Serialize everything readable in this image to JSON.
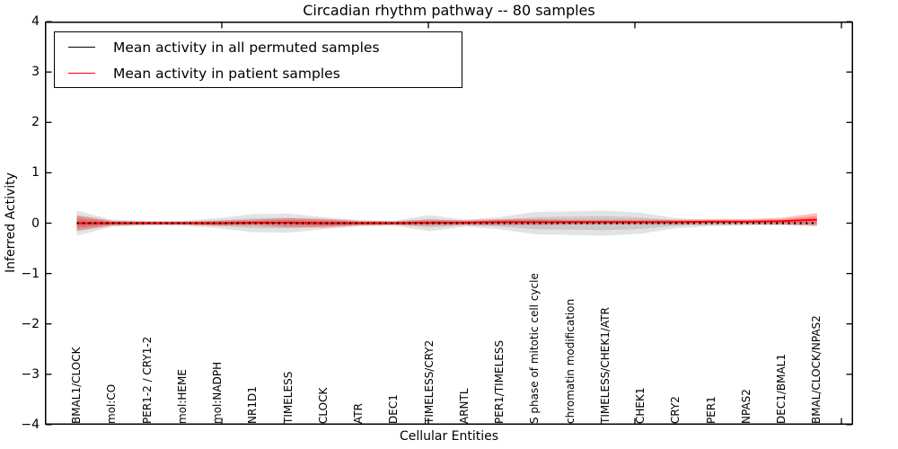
{
  "chart_data": {
    "type": "line",
    "title": "Circadian rhythm pathway -- 80 samples",
    "xlabel": "Cellular Entities",
    "ylabel": "Inferred Activity",
    "ylim": [
      -4,
      4
    ],
    "ytick_values": [
      -4,
      -3,
      -2,
      -1,
      0,
      1,
      2,
      3,
      4
    ],
    "ytick_labels": [
      "−4",
      "−3",
      "−2",
      "−1",
      "0",
      "1",
      "2",
      "3",
      "4"
    ],
    "grid": false,
    "legend_position": "upper left",
    "categories": [
      "BMAL1/CLOCK",
      "mol:CO",
      "PER1-2 / CRY1-2",
      "mol:HEME",
      "mol:NADPH",
      "NR1D1",
      "TIMELESS",
      "CLOCK",
      "ATR",
      "DEC1",
      "TIMELESS/CRY2",
      "ARNTL",
      "PER1/TIMELESS",
      "S phase of mitotic cell cycle",
      "chromatin modification",
      "TIMELESS/CHEK1/ATR",
      "CHEK1",
      "CRY2",
      "PER1",
      "NPAS2",
      "DEC1/BMAL1",
      "BMAL/CLOCK/NPAS2"
    ],
    "series": [
      {
        "name": "Mean activity in all permuted samples",
        "color": "#000000",
        "linestyle": "dotted",
        "values": [
          0,
          0,
          0,
          0,
          0,
          0,
          0,
          0,
          0,
          0,
          0,
          0,
          0,
          0,
          0,
          0,
          0,
          0,
          0,
          0,
          0,
          0
        ],
        "band_halfwidth": [
          0.25,
          0.07,
          0.045,
          0.05,
          0.1,
          0.18,
          0.19,
          0.12,
          0.06,
          0.05,
          0.16,
          0.07,
          0.12,
          0.22,
          0.235,
          0.25,
          0.21,
          0.1,
          0.06,
          0.05,
          0.045,
          0.045
        ],
        "band_color": "#000000",
        "band_opacity": 0.11
      },
      {
        "name": "Mean activity in patient samples",
        "color": "#ff0000",
        "linestyle": "solid",
        "values": [
          0,
          0,
          0,
          0,
          0,
          0.01,
          0.01,
          0,
          0,
          0,
          0.01,
          0.01,
          0.02,
          0.02,
          0.02,
          0.02,
          0.02,
          0.02,
          0.03,
          0.03,
          0.04,
          0.07
        ],
        "band_halfwidth": [
          0.16,
          0.05,
          0.035,
          0.035,
          0.05,
          0.06,
          0.09,
          0.09,
          0.05,
          0.04,
          0.06,
          0.05,
          0.06,
          0.06,
          0.05,
          0.05,
          0.05,
          0.05,
          0.05,
          0.05,
          0.07,
          0.13
        ],
        "band_color": "#ff0000",
        "band_opacity": 0.26
      }
    ]
  }
}
